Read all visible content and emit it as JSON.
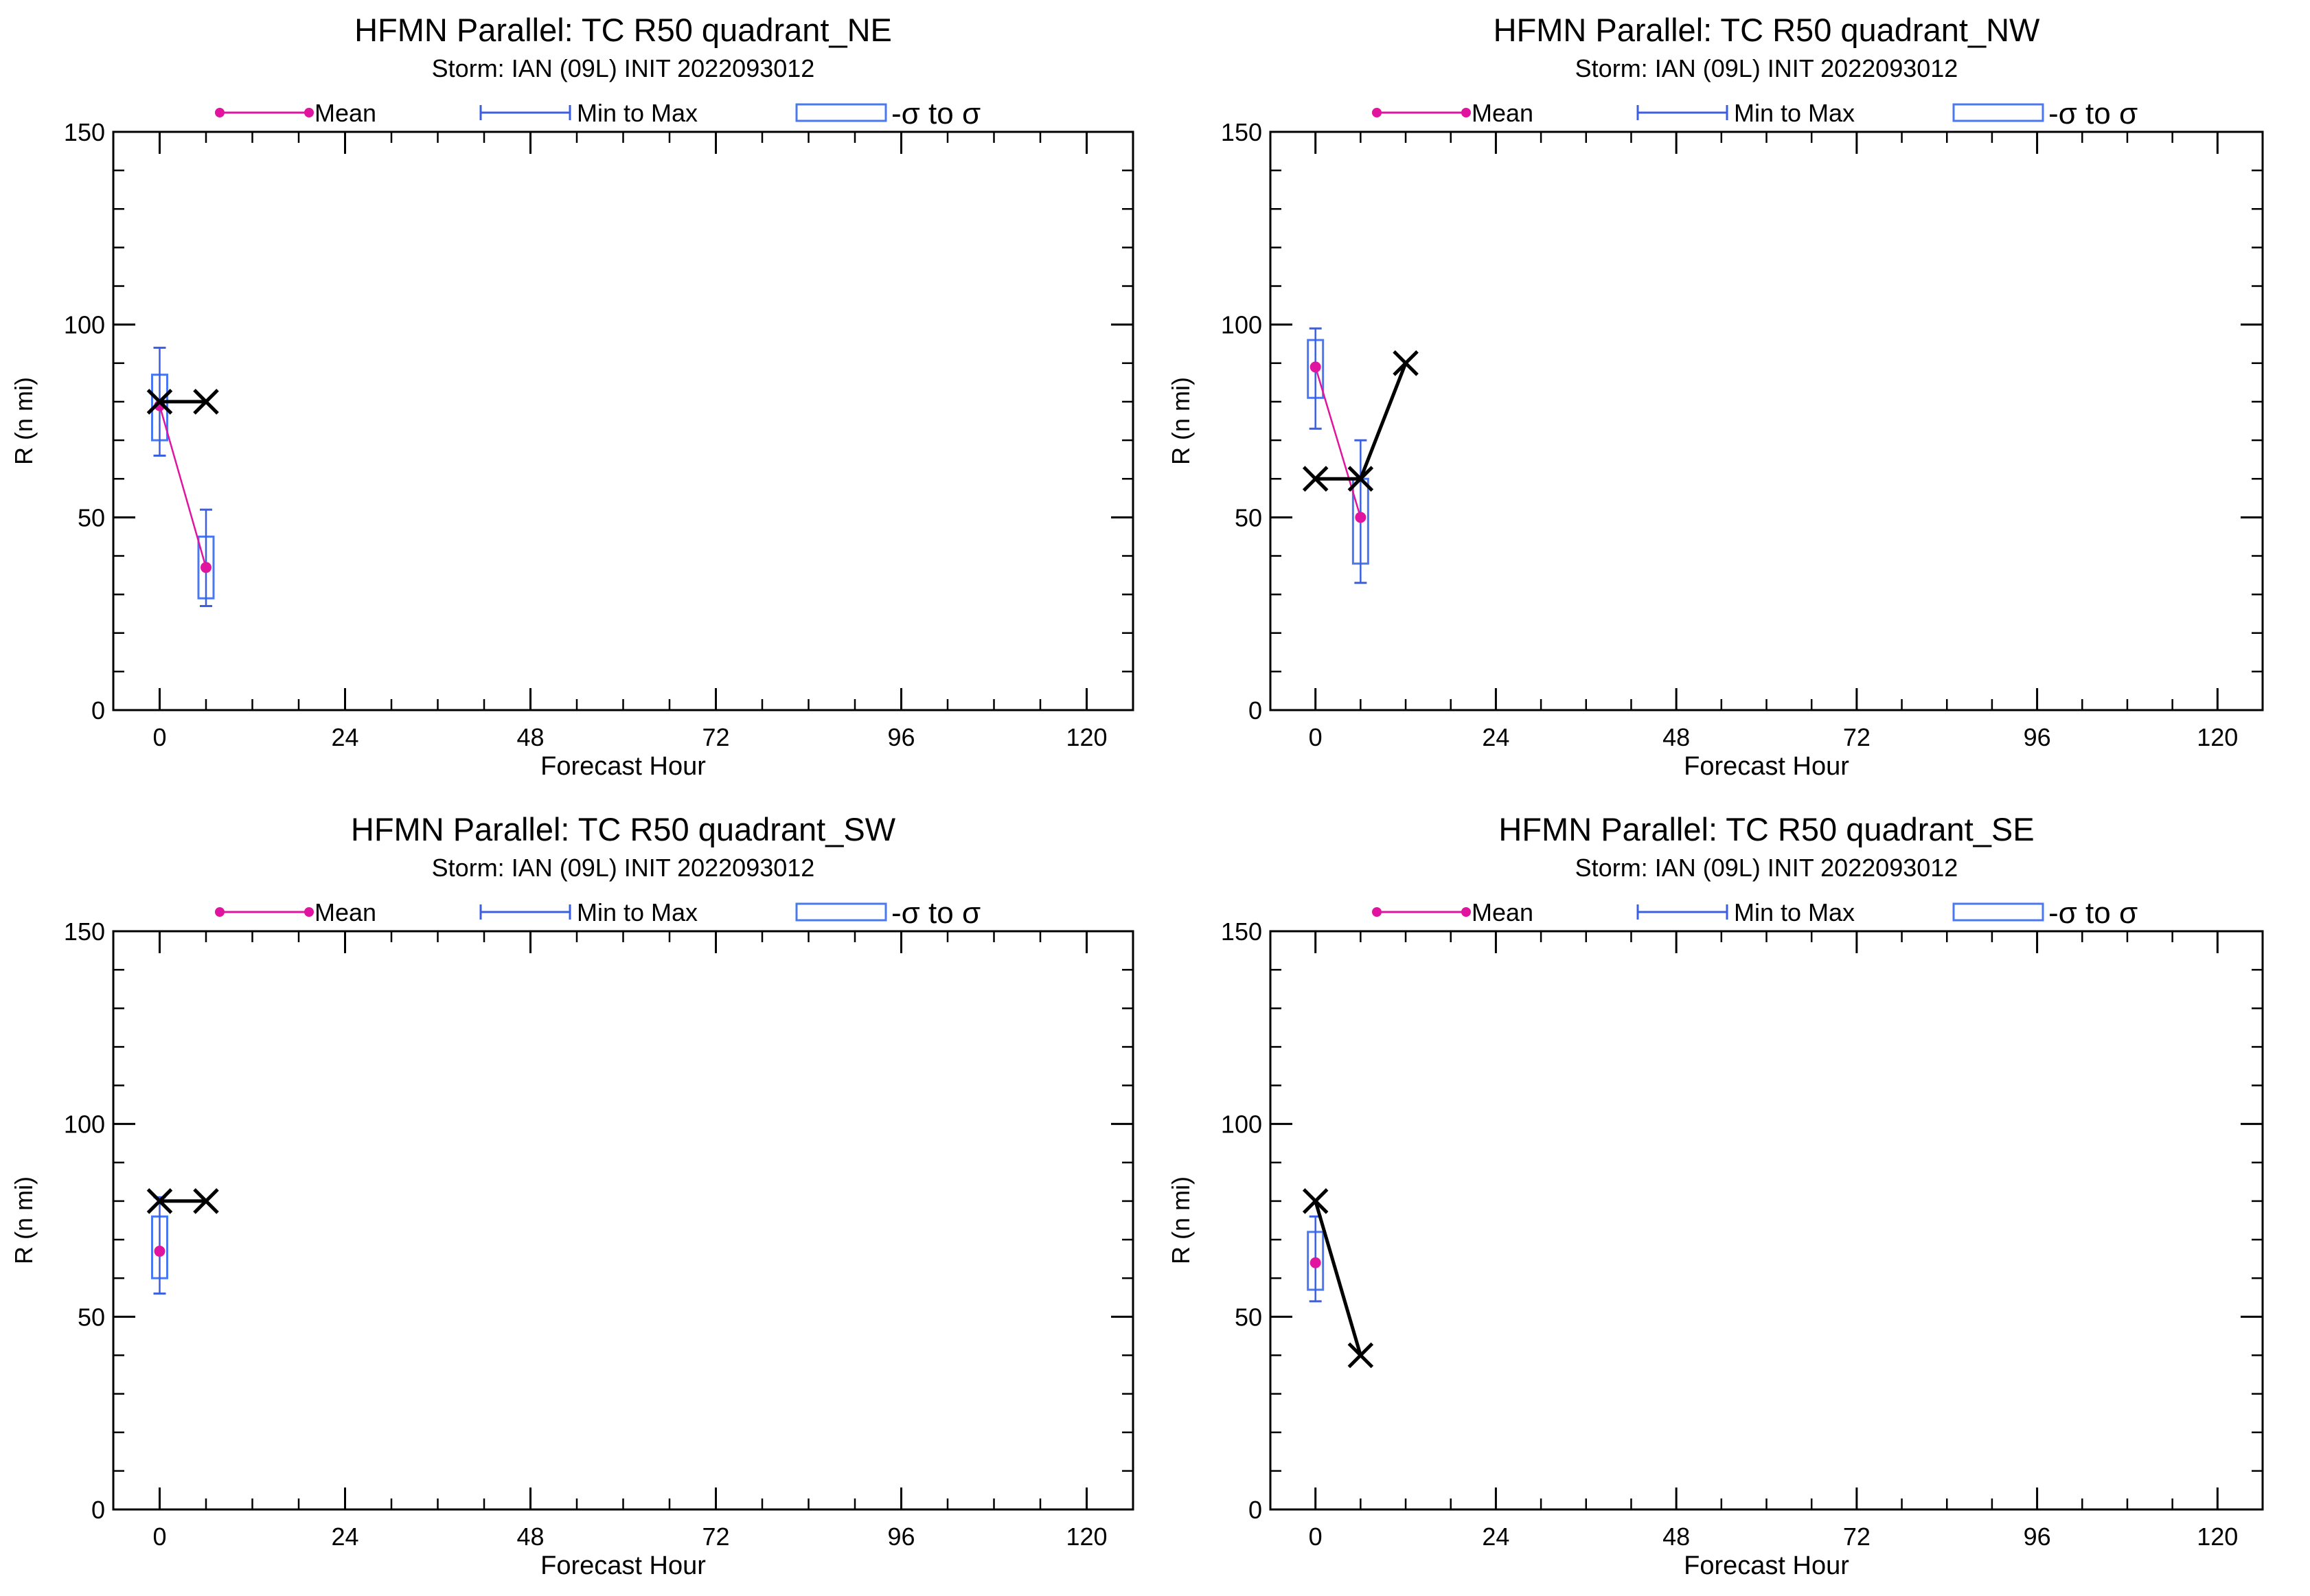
{
  "colors": {
    "mean": "#e0149e",
    "range": "#3b5fe0",
    "sigma": "#4a78f0",
    "observed": "#000000",
    "axis": "#000000"
  },
  "legend": {
    "mean": "Mean",
    "range": "Min to Max",
    "sigma": "-σ to σ"
  },
  "chart_data": [
    {
      "type": "line",
      "title": "HFMN Parallel: TC  R50 quadrant_NE",
      "subtitle": "Storm: IAN (09L) INIT 2022093012",
      "xlabel": "Forecast Hour",
      "ylabel": "R (n mi)",
      "xlim": [
        -6,
        126
      ],
      "ylim": [
        0,
        150
      ],
      "xticks": [
        0,
        24,
        48,
        72,
        96,
        120
      ],
      "yticks": [
        0,
        50,
        100,
        150
      ],
      "legend_position": "top",
      "series": [
        {
          "name": "Mean",
          "x": [
            0,
            6
          ],
          "y": [
            79,
            37
          ]
        },
        {
          "name": "Min to Max",
          "x": [
            0,
            6
          ],
          "low": [
            66,
            27
          ],
          "high": [
            94,
            52
          ]
        },
        {
          "name": "-σ to σ",
          "x": [
            0,
            6
          ],
          "low": [
            70,
            29
          ],
          "high": [
            87,
            45
          ]
        },
        {
          "x": [
            0,
            6
          ],
          "y": [
            80,
            80
          ]
        }
      ]
    },
    {
      "type": "line",
      "title": "HFMN Parallel: TC  R50 quadrant_NW",
      "subtitle": "Storm: IAN (09L) INIT 2022093012",
      "xlabel": "Forecast Hour",
      "ylabel": "R (n mi)",
      "xlim": [
        -6,
        126
      ],
      "ylim": [
        0,
        150
      ],
      "xticks": [
        0,
        24,
        48,
        72,
        96,
        120
      ],
      "yticks": [
        0,
        50,
        100,
        150
      ],
      "legend_position": "top",
      "series": [
        {
          "name": "Mean",
          "x": [
            0,
            6
          ],
          "y": [
            89,
            50
          ]
        },
        {
          "name": "Min to Max",
          "x": [
            0,
            6
          ],
          "low": [
            73,
            33
          ],
          "high": [
            99,
            70
          ]
        },
        {
          "name": "-σ to σ",
          "x": [
            0,
            6
          ],
          "low": [
            81,
            38
          ],
          "high": [
            96,
            60
          ]
        },
        {
          "x": [
            0,
            6,
            12
          ],
          "y": [
            60,
            60,
            90
          ]
        }
      ]
    },
    {
      "type": "line",
      "title": "HFMN Parallel: TC  R50 quadrant_SW",
      "subtitle": "Storm: IAN (09L) INIT 2022093012",
      "xlabel": "Forecast Hour",
      "ylabel": "R (n mi)",
      "xlim": [
        -6,
        126
      ],
      "ylim": [
        0,
        150
      ],
      "xticks": [
        0,
        24,
        48,
        72,
        96,
        120
      ],
      "yticks": [
        0,
        50,
        100,
        150
      ],
      "legend_position": "top",
      "series": [
        {
          "name": "Mean",
          "x": [
            0
          ],
          "y": [
            67
          ]
        },
        {
          "name": "Min to Max",
          "x": [
            0
          ],
          "low": [
            56
          ],
          "high": [
            81
          ]
        },
        {
          "name": "-σ to σ",
          "x": [
            0
          ],
          "low": [
            60
          ],
          "high": [
            76
          ]
        },
        {
          "x": [
            0,
            6
          ],
          "y": [
            80,
            80
          ]
        }
      ]
    },
    {
      "type": "line",
      "title": "HFMN Parallel: TC  R50 quadrant_SE",
      "subtitle": "Storm: IAN (09L) INIT 2022093012",
      "xlabel": "Forecast Hour",
      "ylabel": "R (n mi)",
      "xlim": [
        -6,
        126
      ],
      "ylim": [
        0,
        150
      ],
      "xticks": [
        0,
        24,
        48,
        72,
        96,
        120
      ],
      "yticks": [
        0,
        50,
        100,
        150
      ],
      "legend_position": "top",
      "series": [
        {
          "name": "Mean",
          "x": [
            0
          ],
          "y": [
            64
          ]
        },
        {
          "name": "Min to Max",
          "x": [
            0
          ],
          "low": [
            54
          ],
          "high": [
            76
          ]
        },
        {
          "name": "-σ to σ",
          "x": [
            0
          ],
          "low": [
            57
          ],
          "high": [
            72
          ]
        },
        {
          "x": [
            0,
            6
          ],
          "y": [
            80,
            40
          ]
        }
      ]
    }
  ]
}
